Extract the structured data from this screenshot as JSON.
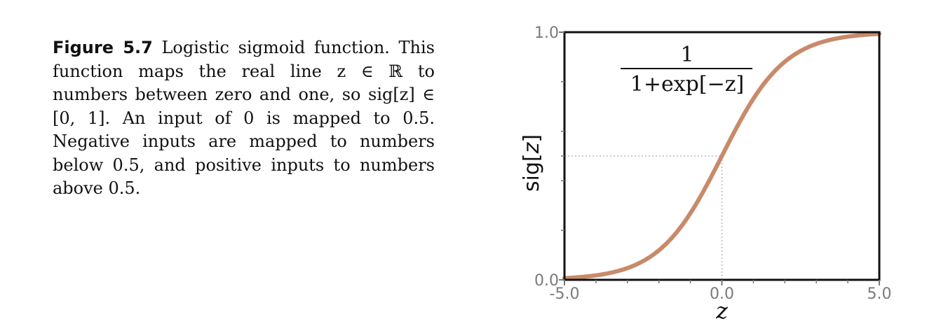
{
  "caption": {
    "label": "Figure 5.7",
    "text": "Logistic sigmoid function. This function maps the real line z ∈ ℝ to numbers between zero and one, so sig[z] ∈ [0, 1]. An input of 0 is mapped to 0.5. Negative inputs are mapped to numbers below 0.5, and positive inputs to numbers above 0.5."
  },
  "chart_data": {
    "type": "line",
    "function": "sigmoid",
    "formula_numerator": "1",
    "formula_denominator": "1+exp[−z]",
    "xlabel": "z",
    "ylabel_prefix": "sig",
    "ylabel_var": "z",
    "xlim": [
      -5.0,
      5.0
    ],
    "ylim": [
      0.0,
      1.0
    ],
    "x_tick_labels": [
      "-5.0",
      "0.0",
      "5.0"
    ],
    "y_tick_labels": [
      "0.0",
      "1.0"
    ],
    "x_minor_ticks": [
      -4,
      -3,
      -2,
      -1,
      1,
      2,
      3,
      4
    ],
    "y_minor_ticks": [
      0.2,
      0.4,
      0.5,
      0.6,
      0.8
    ],
    "reference_point": {
      "x": 0.0,
      "y": 0.5
    },
    "series": [
      {
        "x": [
          -5,
          -4,
          -3,
          -2,
          -1,
          0,
          1,
          2,
          3,
          4,
          5
        ],
        "y": [
          0.0067,
          0.018,
          0.047,
          0.119,
          0.269,
          0.5,
          0.731,
          0.881,
          0.953,
          0.982,
          0.9933
        ]
      }
    ],
    "line_color": "#c98a6a",
    "grid": false
  }
}
